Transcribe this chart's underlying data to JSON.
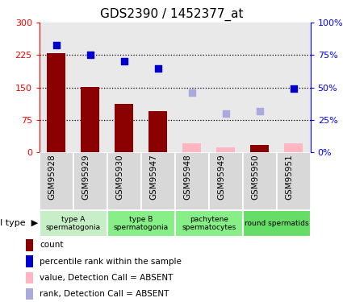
{
  "title": "GDS2390 / 1452377_at",
  "samples": [
    "GSM95928",
    "GSM95929",
    "GSM95930",
    "GSM95947",
    "GSM95948",
    "GSM95949",
    "GSM95950",
    "GSM95951"
  ],
  "bar_values_present": [
    230,
    152,
    112,
    95,
    null,
    null,
    18,
    null
  ],
  "bar_values_absent": [
    null,
    null,
    null,
    null,
    22,
    12,
    null,
    22
  ],
  "rank_present": [
    83,
    75,
    70,
    65,
    null,
    null,
    null,
    49
  ],
  "rank_absent": [
    null,
    null,
    null,
    null,
    46,
    30,
    32,
    null
  ],
  "color_bar_present": "#8B0000",
  "color_bar_absent": "#FFB6C1",
  "color_rank_present": "#0000CC",
  "color_rank_absent": "#AAAADD",
  "ylim_left": [
    0,
    300
  ],
  "ylim_right": [
    0,
    100
  ],
  "yticks_left": [
    0,
    75,
    150,
    225,
    300
  ],
  "yticks_right": [
    0,
    25,
    50,
    75,
    100
  ],
  "ytick_labels_right": [
    "0%",
    "25%",
    "50%",
    "75%",
    "100%"
  ],
  "hlines": [
    75,
    150,
    225
  ],
  "col_bg_color": "#D8D8D8",
  "cell_type_groups": [
    {
      "label": "type A\nspermatogonia",
      "start": 0,
      "end": 2,
      "color": "#C8EEC8"
    },
    {
      "label": "type B\nspermatogonia",
      "start": 2,
      "end": 4,
      "color": "#88EE88"
    },
    {
      "label": "pachytene\nspermatocytes",
      "start": 4,
      "end": 6,
      "color": "#88EE88"
    },
    {
      "label": "round spermatids",
      "start": 6,
      "end": 8,
      "color": "#66DD66"
    }
  ],
  "legend_items": [
    {
      "label": "count",
      "color": "#8B0000"
    },
    {
      "label": "percentile rank within the sample",
      "color": "#0000CC"
    },
    {
      "label": "value, Detection Call = ABSENT",
      "color": "#FFB6C1"
    },
    {
      "label": "rank, Detection Call = ABSENT",
      "color": "#AAAADD"
    }
  ]
}
